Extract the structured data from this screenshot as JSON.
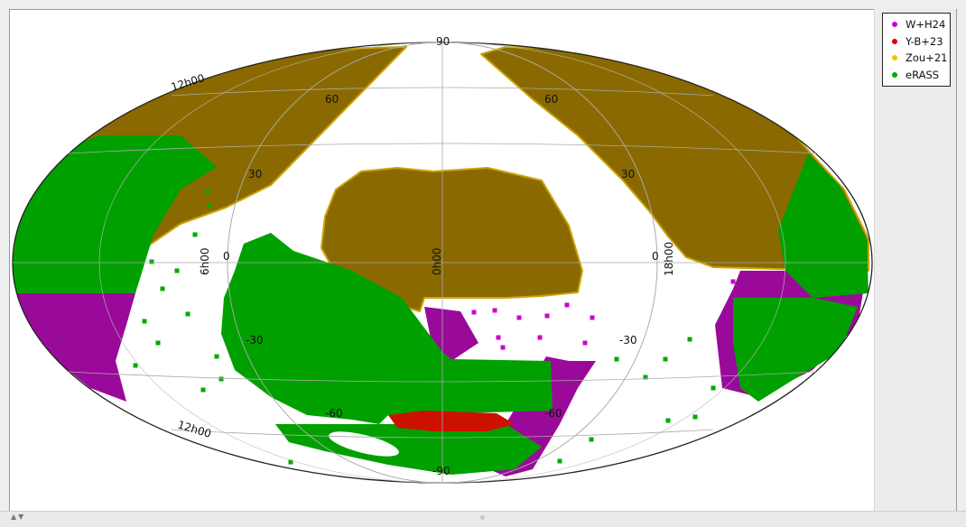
{
  "chart_data": {
    "type": "scatter",
    "projection": "aitoff",
    "grid": true,
    "legend_placement": "top-right",
    "series": [
      {
        "name": "W+H24",
        "color": "#cc00cc"
      },
      {
        "name": "Y-B+23",
        "color": "#dd0000"
      },
      {
        "name": "Zou+21",
        "color": "#f2c200"
      },
      {
        "name": "eRASS",
        "color": "#00aa00"
      }
    ],
    "lat_labels": [
      "90",
      "60",
      "60",
      "30",
      "30",
      "0",
      "0",
      "-30",
      "-30",
      "-60",
      "-60",
      "-90"
    ],
    "lon_labels": [
      "12h00",
      "6h00",
      "0h00",
      "18h00",
      "12h00",
      "12h00"
    ],
    "fill_colors": {
      "dense_zou": "#8a6a00",
      "dense_erass": "#00a000",
      "dense_wh24": "#9a0a9a",
      "dense_yb23": "#cc1100"
    }
  },
  "ui": {
    "scroll_arrows": "▲▼"
  }
}
